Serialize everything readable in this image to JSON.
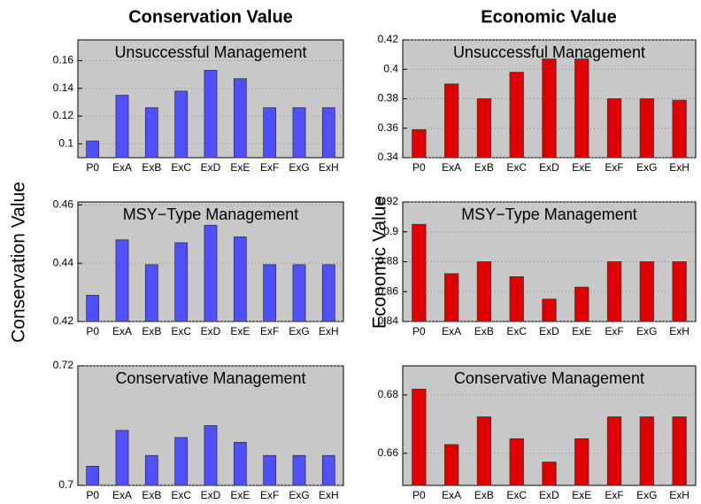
{
  "column_titles": [
    "Conservation Value",
    "Economic Value"
  ],
  "y_labels": [
    "Conservation Value",
    "Economic Value"
  ],
  "chart_data": [
    {
      "type": "bar",
      "title": "Unsuccessful Management",
      "color": "#5050ff",
      "categories": [
        "P0",
        "ExA",
        "ExB",
        "ExC",
        "ExD",
        "ExE",
        "ExF",
        "ExG",
        "ExH"
      ],
      "values": [
        0.102,
        0.135,
        0.126,
        0.138,
        0.153,
        0.147,
        0.126,
        0.126,
        0.126
      ],
      "ylim": [
        0.09,
        0.175
      ],
      "yticks": [
        0.1,
        0.12,
        0.14,
        0.16
      ],
      "grid": true
    },
    {
      "type": "bar",
      "title": "MSY−Type Management",
      "color": "#5050ff",
      "categories": [
        "P0",
        "ExA",
        "ExB",
        "ExC",
        "ExD",
        "ExE",
        "ExF",
        "ExG",
        "ExH"
      ],
      "values": [
        0.429,
        0.448,
        0.4395,
        0.447,
        0.453,
        0.449,
        0.4395,
        0.4395,
        0.4395
      ],
      "ylim": [
        0.42,
        0.461
      ],
      "yticks": [
        0.42,
        0.44,
        0.46
      ],
      "grid": true
    },
    {
      "type": "bar",
      "title": "Conservative Management",
      "color": "#5050ff",
      "categories": [
        "P0",
        "ExA",
        "ExB",
        "ExC",
        "ExD",
        "ExE",
        "ExF",
        "ExG",
        "ExH"
      ],
      "values": [
        0.7032,
        0.7092,
        0.705,
        0.708,
        0.71,
        0.7072,
        0.705,
        0.705,
        0.705
      ],
      "ylim": [
        0.7,
        0.72
      ],
      "yticks": [
        0.7,
        0.72
      ],
      "grid": true
    },
    {
      "type": "bar",
      "title": "Unsuccessful Management",
      "color": "#e00000",
      "categories": [
        "P0",
        "ExA",
        "ExB",
        "ExC",
        "ExD",
        "ExE",
        "ExF",
        "ExG",
        "ExH"
      ],
      "values": [
        0.359,
        0.39,
        0.38,
        0.398,
        0.407,
        0.407,
        0.38,
        0.38,
        0.379
      ],
      "ylim": [
        0.34,
        0.42
      ],
      "yticks": [
        0.34,
        0.36,
        0.38,
        0.4,
        0.42
      ],
      "grid": true
    },
    {
      "type": "bar",
      "title": "MSY−Type Management",
      "color": "#e00000",
      "categories": [
        "P0",
        "ExA",
        "ExB",
        "ExC",
        "ExD",
        "ExE",
        "ExF",
        "ExG",
        "ExH"
      ],
      "values": [
        0.905,
        0.872,
        0.88,
        0.87,
        0.855,
        0.863,
        0.88,
        0.88,
        0.88
      ],
      "ylim": [
        0.84,
        0.92
      ],
      "yticks": [
        0.84,
        0.86,
        0.88,
        0.9,
        0.92
      ],
      "grid": true
    },
    {
      "type": "bar",
      "title": "Conservative Management",
      "color": "#e00000",
      "categories": [
        "P0",
        "ExA",
        "ExB",
        "ExC",
        "ExD",
        "ExE",
        "ExF",
        "ExG",
        "ExH"
      ],
      "values": [
        0.682,
        0.663,
        0.6725,
        0.665,
        0.657,
        0.665,
        0.6725,
        0.6725,
        0.6725
      ],
      "ylim": [
        0.649,
        0.69
      ],
      "yticks": [
        0.66,
        0.68
      ],
      "grid": true
    }
  ]
}
